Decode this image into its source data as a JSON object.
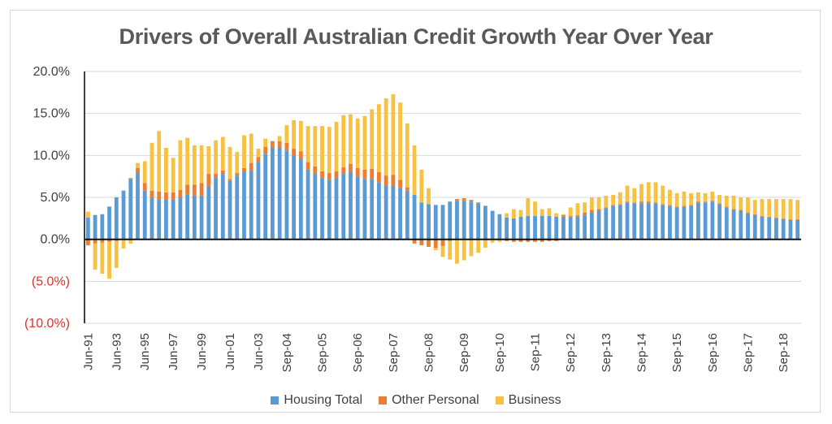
{
  "chart_data": {
    "type": "bar",
    "stacked": true,
    "title": "Drivers of Overall Australian Credit Growth Year Over Year",
    "xlabel": "",
    "ylabel": "",
    "ylim": [
      -10,
      20
    ],
    "yticks": [
      {
        "value": 20,
        "label": "20.0%",
        "color": "#404040"
      },
      {
        "value": 15,
        "label": "15.0%",
        "color": "#404040"
      },
      {
        "value": 10,
        "label": "10.0%",
        "color": "#404040"
      },
      {
        "value": 5,
        "label": "5.0%",
        "color": "#404040"
      },
      {
        "value": 0,
        "label": "0.0%",
        "color": "#404040"
      },
      {
        "value": -5,
        "label": "(5.0%)",
        "color": "#e0312a"
      },
      {
        "value": -10,
        "label": "(10.0%)",
        "color": "#e0312a"
      }
    ],
    "xtick_labels": [
      {
        "index": 0,
        "label": "Jun-91"
      },
      {
        "index": 4,
        "label": "Jun-93"
      },
      {
        "index": 8,
        "label": "Jun-95"
      },
      {
        "index": 12,
        "label": "Jun-97"
      },
      {
        "index": 16,
        "label": "Jun-99"
      },
      {
        "index": 20,
        "label": "Jun-01"
      },
      {
        "index": 24,
        "label": "Jun-03"
      },
      {
        "index": 28,
        "label": "Sep-04"
      },
      {
        "index": 33,
        "label": "Sep-05"
      },
      {
        "index": 38,
        "label": "Sep-06"
      },
      {
        "index": 43,
        "label": "Sep-07"
      },
      {
        "index": 48,
        "label": "Sep-08"
      },
      {
        "index": 53,
        "label": "Sep-09"
      },
      {
        "index": 58,
        "label": "Sep-10"
      },
      {
        "index": 63,
        "label": "Sep-11"
      },
      {
        "index": 68,
        "label": "Sep-12"
      },
      {
        "index": 73,
        "label": "Sep-13"
      },
      {
        "index": 78,
        "label": "Sep-14"
      },
      {
        "index": 83,
        "label": "Sep-15"
      },
      {
        "index": 88,
        "label": "Sep-16"
      },
      {
        "index": 93,
        "label": "Sep-17"
      },
      {
        "index": 98,
        "label": "Sep-18"
      }
    ],
    "grid": true,
    "legend_position": "bottom",
    "series": [
      {
        "name": "Housing Total",
        "color": "#5b9bd5",
        "values": [
          2.6,
          2.9,
          3.0,
          3.9,
          5.0,
          5.8,
          7.2,
          7.9,
          5.8,
          5.0,
          4.8,
          4.7,
          4.8,
          5.0,
          5.3,
          5.2,
          5.2,
          6.3,
          7.4,
          7.8,
          7.0,
          7.6,
          8.0,
          8.2,
          9.2,
          10.2,
          10.9,
          10.9,
          10.6,
          10.0,
          9.6,
          8.3,
          7.8,
          7.3,
          7.1,
          7.3,
          7.8,
          8.1,
          7.5,
          7.2,
          7.2,
          6.8,
          6.4,
          6.4,
          6.1,
          5.8,
          5.3,
          4.4,
          4.2,
          4.1,
          4.1,
          4.5,
          4.6,
          4.6,
          4.5,
          4.3,
          4.0,
          3.4,
          3.0,
          2.6,
          2.5,
          2.7,
          2.8,
          2.8,
          2.8,
          2.8,
          2.7,
          2.7,
          2.6,
          2.7,
          2.9,
          3.2,
          3.4,
          3.7,
          4.0,
          4.1,
          4.4,
          4.3,
          4.3,
          4.3,
          4.3,
          4.1,
          4.0,
          3.8,
          3.9,
          4.0,
          4.4,
          4.4,
          4.5,
          4.2,
          3.8,
          3.5,
          3.4,
          3.1,
          2.9,
          2.7,
          2.6,
          2.5,
          2.4,
          2.3,
          2.3
        ]
      },
      {
        "name": "Other Personal",
        "color": "#ed7d31",
        "values": [
          -0.7,
          -0.5,
          -0.4,
          -0.3,
          -0.2,
          -0.1,
          0.1,
          0.6,
          0.9,
          0.8,
          0.9,
          0.9,
          0.8,
          0.9,
          1.2,
          1.3,
          1.5,
          1.5,
          0.4,
          0.4,
          0.2,
          0.3,
          0.5,
          0.9,
          0.6,
          0.8,
          0.8,
          0.8,
          0.9,
          0.8,
          0.9,
          0.9,
          0.9,
          0.8,
          0.8,
          0.8,
          0.8,
          0.9,
          1.0,
          1.1,
          1.2,
          1.2,
          1.2,
          1.3,
          1.0,
          0.4,
          -0.5,
          -0.7,
          -0.9,
          -1.0,
          -0.8,
          -0.2,
          0.2,
          0.3,
          0.2,
          0.1,
          -0.1,
          -0.1,
          -0.1,
          -0.2,
          -0.3,
          -0.3,
          -0.3,
          -0.3,
          -0.3,
          -0.2,
          -0.2,
          0.2,
          0.2,
          0.2,
          0.3,
          0.3,
          0.2,
          0.1,
          0.1,
          0.1,
          0.1,
          0.1,
          0.2,
          0.2,
          0.1,
          0.1,
          0.1,
          0.1,
          0.1,
          0.1,
          0.1,
          0.1,
          0.1,
          0.1,
          0.1,
          0.1,
          0.1,
          0.1,
          0.1,
          0.1,
          0.1,
          0.1,
          0.1,
          0.1,
          0.1
        ]
      },
      {
        "name": "Business",
        "color": "#f7c242",
        "values": [
          0.7,
          -3.1,
          -3.7,
          -4.4,
          -3.2,
          -1.0,
          -0.5,
          0.6,
          2.6,
          5.7,
          7.2,
          5.3,
          4.1,
          5.9,
          5.6,
          4.7,
          4.5,
          3.3,
          4.0,
          4.0,
          3.8,
          2.5,
          3.9,
          3.5,
          1.0,
          1.0,
          0.0,
          0.6,
          2.1,
          3.4,
          3.6,
          4.3,
          4.8,
          5.4,
          5.5,
          5.9,
          6.2,
          5.9,
          5.9,
          6.4,
          7.1,
          8.1,
          9.2,
          9.6,
          9.2,
          7.6,
          5.9,
          3.9,
          1.9,
          -0.3,
          -1.3,
          -2.2,
          -2.9,
          -2.5,
          -2.0,
          -1.6,
          -0.9,
          -0.3,
          -0.2,
          0.5,
          1.1,
          0.8,
          2.1,
          1.7,
          0.8,
          0.9,
          0.4,
          0.1,
          1.0,
          1.4,
          1.2,
          1.5,
          1.4,
          1.4,
          1.2,
          1.4,
          1.9,
          1.7,
          2.1,
          2.3,
          2.4,
          2.2,
          1.8,
          1.6,
          1.7,
          1.4,
          1.1,
          1.0,
          1.1,
          1.0,
          1.3,
          1.6,
          1.5,
          1.8,
          1.7,
          2.0,
          2.1,
          2.2,
          2.3,
          2.4,
          2.3
        ]
      }
    ]
  }
}
